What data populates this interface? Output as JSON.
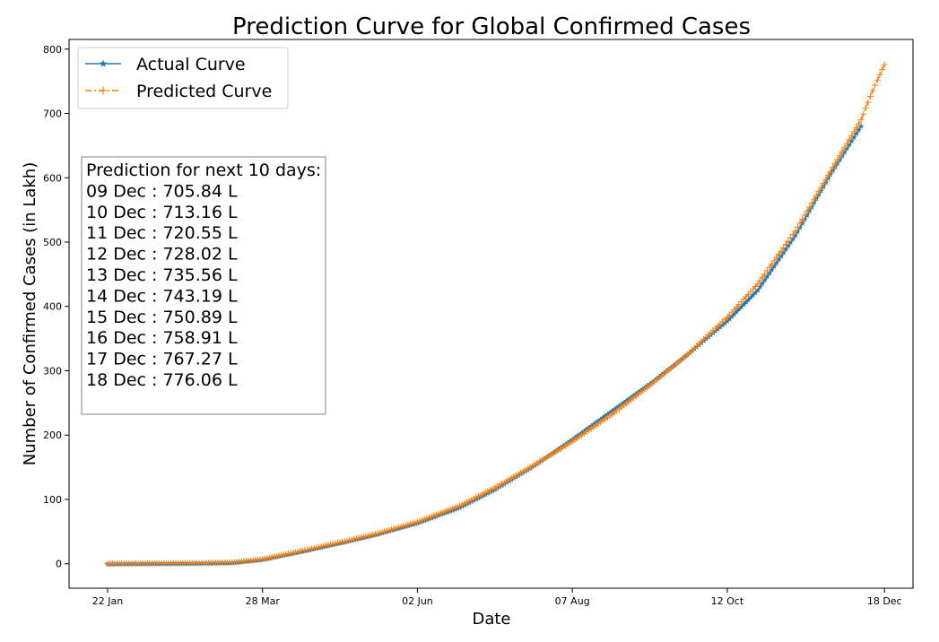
{
  "chart_data": {
    "type": "line",
    "title": "Prediction Curve for Global Confirmed Cases",
    "xlabel": "Date",
    "ylabel": "Number of Confirmed Cases (in Lakh)",
    "x_start_date": "2020-01-22",
    "x_ticks": [
      {
        "label": "22 Jan",
        "date": "2020-01-22"
      },
      {
        "label": "28 Mar",
        "date": "2020-03-28"
      },
      {
        "label": "02 Jun",
        "date": "2020-06-02"
      },
      {
        "label": "07 Aug",
        "date": "2020-08-07"
      },
      {
        "label": "12 Oct",
        "date": "2020-10-12"
      },
      {
        "label": "18 Dec",
        "date": "2020-12-18"
      }
    ],
    "ylim": [
      -38,
      815
    ],
    "y_ticks": [
      0,
      100,
      200,
      300,
      400,
      500,
      600,
      700,
      800
    ],
    "grid": false,
    "legend": {
      "placement": "top-left",
      "entries": [
        {
          "name": "Actual Curve",
          "color": "#1f77b4",
          "marker": "star",
          "style": "solid"
        },
        {
          "name": "Predicted Curve",
          "color": "#ff7f0e",
          "marker": "plus",
          "style": "dash-dot"
        }
      ]
    },
    "series": [
      {
        "name": "Actual Curve",
        "color": "#1f77b4",
        "points": [
          [
            "2020-01-22",
            0.0
          ],
          [
            "2020-02-10",
            0.4
          ],
          [
            "2020-03-01",
            0.9
          ],
          [
            "2020-03-15",
            1.7
          ],
          [
            "2020-03-28",
            6.6
          ],
          [
            "2020-04-15",
            20.0
          ],
          [
            "2020-05-01",
            33.0
          ],
          [
            "2020-05-15",
            45.0
          ],
          [
            "2020-06-02",
            63.0
          ],
          [
            "2020-06-20",
            87.0
          ],
          [
            "2020-07-05",
            115.0
          ],
          [
            "2020-07-20",
            148.0
          ],
          [
            "2020-08-07",
            193.0
          ],
          [
            "2020-08-25",
            240.0
          ],
          [
            "2020-09-10",
            282.0
          ],
          [
            "2020-09-25",
            325.0
          ],
          [
            "2020-10-12",
            377.0
          ],
          [
            "2020-10-25",
            425.0
          ],
          [
            "2020-11-10",
            510.0
          ],
          [
            "2020-11-25",
            605.0
          ],
          [
            "2020-12-08",
            680.0
          ]
        ]
      },
      {
        "name": "Predicted Curve",
        "color": "#ff7f0e",
        "points": [
          [
            "2020-01-22",
            0.0
          ],
          [
            "2020-02-10",
            0.4
          ],
          [
            "2020-03-01",
            0.9
          ],
          [
            "2020-03-15",
            2.0
          ],
          [
            "2020-03-28",
            7.0
          ],
          [
            "2020-04-15",
            21.0
          ],
          [
            "2020-05-01",
            34.0
          ],
          [
            "2020-05-15",
            46.0
          ],
          [
            "2020-06-02",
            65.0
          ],
          [
            "2020-06-20",
            90.0
          ],
          [
            "2020-07-05",
            118.0
          ],
          [
            "2020-07-20",
            150.0
          ],
          [
            "2020-08-07",
            190.0
          ],
          [
            "2020-08-25",
            235.0
          ],
          [
            "2020-09-10",
            280.0
          ],
          [
            "2020-09-25",
            325.0
          ],
          [
            "2020-10-12",
            383.0
          ],
          [
            "2020-10-25",
            435.0
          ],
          [
            "2020-11-10",
            517.0
          ],
          [
            "2020-11-25",
            610.0
          ],
          [
            "2020-12-08",
            690.0
          ],
          [
            "2020-12-13",
            735.56
          ],
          [
            "2020-12-18",
            776.06
          ]
        ]
      }
    ],
    "annotation": {
      "placement": "left",
      "lines": [
        "Prediction for next 10 days:",
        "09 Dec : 705.84 L",
        "10 Dec : 713.16 L",
        "11 Dec : 720.55 L",
        "12 Dec : 728.02 L",
        "13 Dec : 735.56 L",
        "14 Dec : 743.19 L",
        "15 Dec : 750.89 L",
        "16 Dec : 758.91 L",
        "17 Dec : 767.27 L",
        "18 Dec : 776.06 L"
      ]
    }
  }
}
